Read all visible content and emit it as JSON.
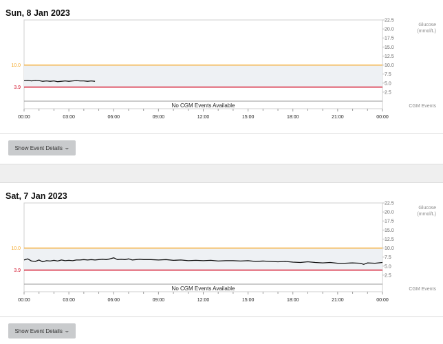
{
  "chart_data": [
    {
      "type": "line",
      "title": "Sun, 8 Jan 2023",
      "ylabel": "Glucose\n(mmol/L)",
      "events_label": "CGM Events",
      "no_events_text": "No CGM Events Available",
      "ylim": [
        0,
        22.5
      ],
      "xlim": [
        0,
        24
      ],
      "y_ticks": [
        "22.5",
        "20.0",
        "17.5",
        "15.0",
        "12.5",
        "10.0",
        "7.5",
        "5.0",
        "2.5"
      ],
      "x_ticks": [
        "00:00",
        "03:00",
        "06:00",
        "09:00",
        "12:00",
        "15:00",
        "18:00",
        "21:00",
        "00:00"
      ],
      "target_high": 10.0,
      "target_low": 3.9,
      "target_high_label": "10.0",
      "target_low_label": "3.9",
      "colors": {
        "high": "#f5a623",
        "low": "#d0011b",
        "line": "#111111",
        "band": "#eef1f4"
      },
      "series": [
        {
          "name": "Glucose",
          "x": [
            0,
            0.25,
            0.5,
            0.75,
            1.0,
            1.25,
            1.5,
            1.75,
            2.0,
            2.25,
            2.5,
            2.75,
            3.0,
            3.25,
            3.5,
            3.75,
            4.0,
            4.25,
            4.5,
            4.75
          ],
          "values": [
            5.7,
            5.8,
            5.6,
            5.8,
            5.7,
            5.5,
            5.6,
            5.5,
            5.6,
            5.4,
            5.5,
            5.6,
            5.5,
            5.6,
            5.7,
            5.6,
            5.6,
            5.5,
            5.6,
            5.5
          ]
        }
      ]
    },
    {
      "type": "line",
      "title": "Sat, 7 Jan 2023",
      "ylabel": "Glucose\n(mmol/L)",
      "events_label": "CGM Events",
      "no_events_text": "No CGM Events Available",
      "ylim": [
        0,
        22.5
      ],
      "xlim": [
        0,
        24
      ],
      "y_ticks": [
        "22.5",
        "20.0",
        "17.5",
        "15.0",
        "12.5",
        "10.0",
        "7.5",
        "5.0",
        "2.5"
      ],
      "x_ticks": [
        "00:00",
        "03:00",
        "06:00",
        "09:00",
        "12:00",
        "15:00",
        "18:00",
        "21:00",
        "00:00"
      ],
      "target_high": 10.0,
      "target_low": 3.9,
      "target_high_label": "10.0",
      "target_low_label": "3.9",
      "colors": {
        "high": "#f5a623",
        "low": "#d0011b",
        "line": "#111111",
        "band": "#eef1f4"
      },
      "series": [
        {
          "name": "Glucose",
          "x": [
            0,
            0.25,
            0.5,
            0.75,
            1.0,
            1.25,
            1.5,
            1.75,
            2.0,
            2.25,
            2.5,
            2.75,
            3.0,
            3.25,
            3.5,
            3.75,
            4.0,
            4.25,
            4.5,
            4.75,
            5.0,
            5.25,
            5.5,
            5.75,
            6.0,
            6.25,
            6.5,
            6.75,
            7.0,
            7.25,
            7.5,
            7.75,
            8.0,
            8.5,
            9.0,
            9.5,
            10.0,
            10.5,
            11.0,
            11.5,
            12.0,
            12.5,
            13.0,
            13.5,
            14.0,
            14.5,
            15.0,
            15.5,
            16.0,
            16.5,
            17.0,
            17.5,
            18.0,
            18.5,
            19.0,
            19.5,
            20.0,
            20.5,
            21.0,
            21.5,
            22.0,
            22.5,
            22.75,
            23.0,
            23.5,
            24.0
          ],
          "values": [
            6.7,
            7.0,
            6.4,
            6.3,
            6.7,
            6.2,
            6.5,
            6.4,
            6.6,
            6.4,
            6.7,
            6.5,
            6.6,
            6.5,
            6.7,
            6.7,
            6.8,
            6.7,
            6.8,
            6.7,
            6.8,
            6.9,
            6.8,
            7.0,
            7.3,
            6.8,
            6.9,
            6.8,
            7.0,
            6.7,
            6.8,
            6.9,
            6.8,
            6.8,
            6.7,
            6.8,
            6.6,
            6.7,
            6.5,
            6.6,
            6.5,
            6.6,
            6.4,
            6.5,
            6.5,
            6.4,
            6.5,
            6.3,
            6.4,
            6.3,
            6.2,
            6.3,
            6.1,
            6.0,
            6.2,
            6.0,
            5.9,
            6.0,
            5.8,
            5.8,
            5.9,
            5.8,
            5.5,
            5.9,
            5.8,
            6.0
          ]
        }
      ]
    }
  ],
  "buttons": [
    {
      "label": "Show Event Details"
    },
    {
      "label": "Show Event Details"
    }
  ],
  "icons": {
    "expand": "chevron-down-icon"
  }
}
